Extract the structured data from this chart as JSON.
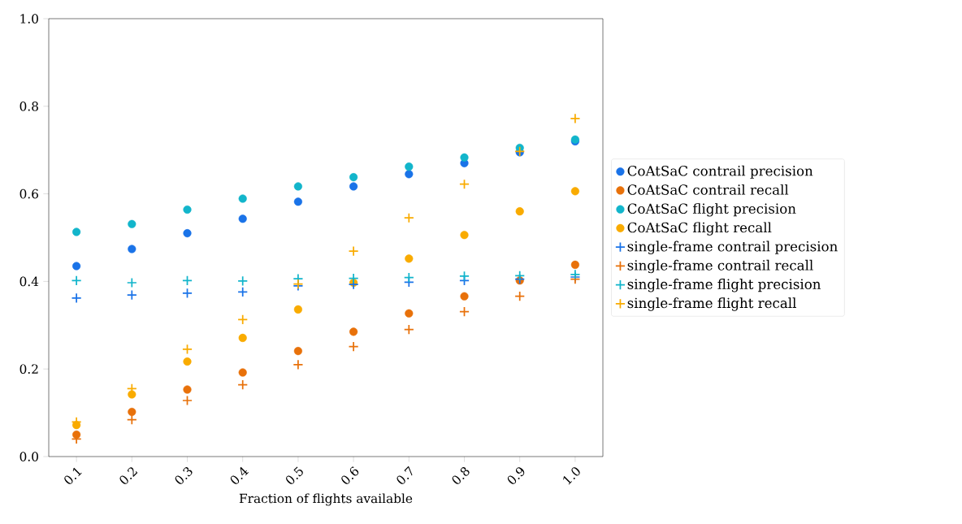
{
  "chart_data": {
    "type": "scatter",
    "xlabel": "Fraction of flights available",
    "x": [
      0.1,
      0.2,
      0.3,
      0.4,
      0.5,
      0.6,
      0.7,
      0.8,
      0.9,
      1.0
    ],
    "xlim": [
      0.05,
      1.05
    ],
    "xticks": [
      0.1,
      0.2,
      0.3,
      0.4,
      0.5,
      0.6,
      0.7,
      0.8,
      0.9,
      {
        "value": 1.0,
        "label": "1.0"
      }
    ],
    "ylim": [
      0.0,
      1.0
    ],
    "yticks": [
      {
        "value": 0.0,
        "label": "0.0"
      },
      0.2,
      0.4,
      0.6,
      0.8,
      {
        "value": 1.0,
        "label": "1.0"
      }
    ],
    "legend": "right",
    "grid": false,
    "series": [
      {
        "name": "CoAtSaC contrail precision",
        "color": "#1a73e8",
        "marker": "circle",
        "values": [
          0.435,
          0.474,
          0.51,
          0.543,
          0.582,
          0.617,
          0.645,
          0.67,
          0.695,
          0.72
        ]
      },
      {
        "name": "CoAtSaC contrail recall",
        "color": "#e8710a",
        "marker": "circle",
        "values": [
          0.05,
          0.102,
          0.153,
          0.192,
          0.241,
          0.285,
          0.327,
          0.366,
          0.402,
          0.438
        ]
      },
      {
        "name": "CoAtSaC flight precision",
        "color": "#12b5cb",
        "marker": "circle",
        "values": [
          0.513,
          0.531,
          0.564,
          0.589,
          0.617,
          0.638,
          0.662,
          0.683,
          0.705,
          0.724
        ]
      },
      {
        "name": "CoAtSaC flight recall",
        "color": "#f9ab00",
        "marker": "circle",
        "values": [
          0.072,
          0.142,
          0.217,
          0.271,
          0.336,
          0.397,
          0.452,
          0.506,
          0.56,
          0.606
        ]
      },
      {
        "name": "single-frame contrail precision",
        "color": "#1a73e8",
        "marker": "cross",
        "values": [
          0.362,
          0.369,
          0.373,
          0.376,
          0.39,
          0.393,
          0.398,
          0.402,
          0.405,
          0.41
        ]
      },
      {
        "name": "single-frame contrail recall",
        "color": "#e8710a",
        "marker": "cross",
        "values": [
          0.04,
          0.084,
          0.128,
          0.164,
          0.21,
          0.251,
          0.29,
          0.331,
          0.366,
          0.405
        ]
      },
      {
        "name": "single-frame flight precision",
        "color": "#12b5cb",
        "marker": "cross",
        "values": [
          0.402,
          0.397,
          0.402,
          0.401,
          0.406,
          0.407,
          0.409,
          0.412,
          0.413,
          0.416
        ]
      },
      {
        "name": "single-frame flight recall",
        "color": "#f9ab00",
        "marker": "cross",
        "values": [
          0.079,
          0.155,
          0.245,
          0.313,
          0.394,
          0.469,
          0.545,
          0.622,
          0.697,
          0.772
        ]
      }
    ]
  }
}
